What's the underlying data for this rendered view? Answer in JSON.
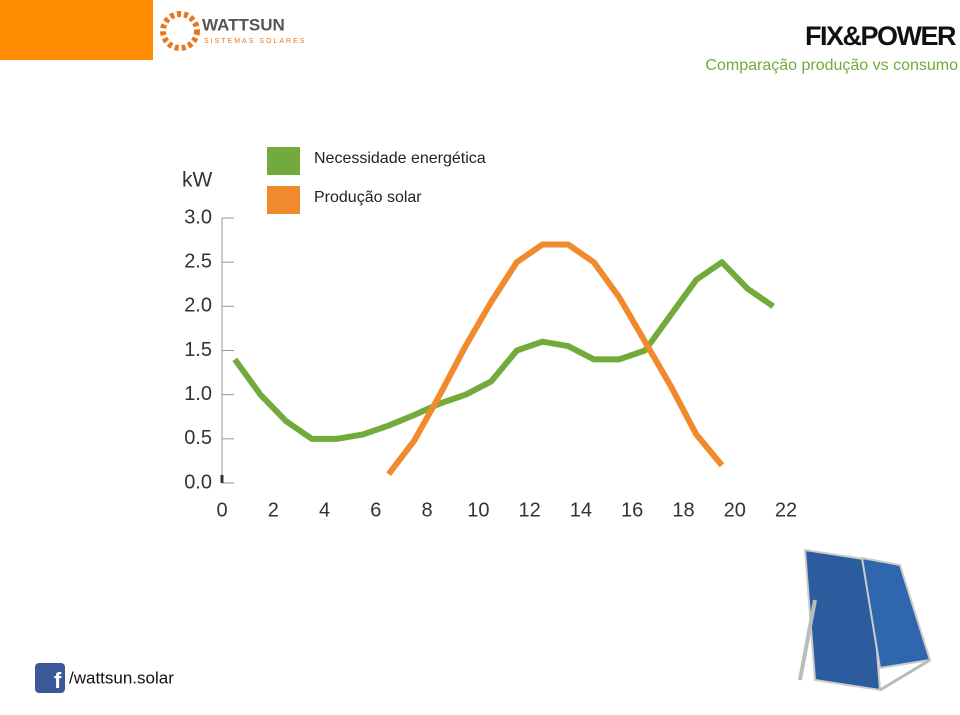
{
  "header": {
    "brand": "WATTSUN",
    "brand_sub": "SISTEMAS SOLARES",
    "title": "FIX&POWER",
    "subtitle": "Comparação produção vs consumo"
  },
  "footer": {
    "social": "/wattsun.solar"
  },
  "chart_data": {
    "type": "line",
    "ylabel": "kW",
    "series": [
      {
        "name": "Necessidade energética",
        "color": "#72ab3b",
        "x": [
          0.5,
          1.5,
          2.5,
          3.5,
          4.5,
          5.5,
          6.5,
          7.5,
          8.5,
          9.5,
          10.5,
          11.5,
          12.5,
          13.5,
          14.5,
          15.5,
          16.5,
          17.5,
          18.5,
          19.5,
          20.5,
          21.5
        ],
        "values": [
          1.4,
          1.0,
          0.7,
          0.5,
          0.5,
          0.55,
          0.65,
          0.77,
          0.9,
          1.0,
          1.15,
          1.5,
          1.6,
          1.55,
          1.4,
          1.4,
          1.5,
          1.9,
          2.3,
          2.5,
          2.2,
          2.0
        ]
      },
      {
        "name": "Produção solar",
        "color": "#f08a2c",
        "x": [
          6.5,
          7.5,
          8.5,
          9.5,
          10.5,
          11.5,
          12.5,
          13.5,
          14.5,
          15.5,
          16.5,
          17.5,
          18.5,
          19.5
        ],
        "values": [
          0.1,
          0.48,
          1.0,
          1.55,
          2.05,
          2.5,
          2.7,
          2.7,
          2.5,
          2.1,
          1.6,
          1.1,
          0.55,
          0.2
        ]
      }
    ],
    "xlim": [
      0,
      22
    ],
    "xticks": [
      0,
      2,
      4,
      6,
      8,
      10,
      12,
      14,
      16,
      18,
      20,
      22
    ],
    "ylim": [
      0,
      3
    ],
    "yticks": [
      {
        "value": 0,
        "label": "0.0"
      },
      0.5,
      {
        "value": 1,
        "label": "1.0"
      },
      1.5,
      {
        "value": 2,
        "label": "2.0"
      },
      2.5,
      {
        "value": 3,
        "label": "3.0"
      }
    ]
  }
}
